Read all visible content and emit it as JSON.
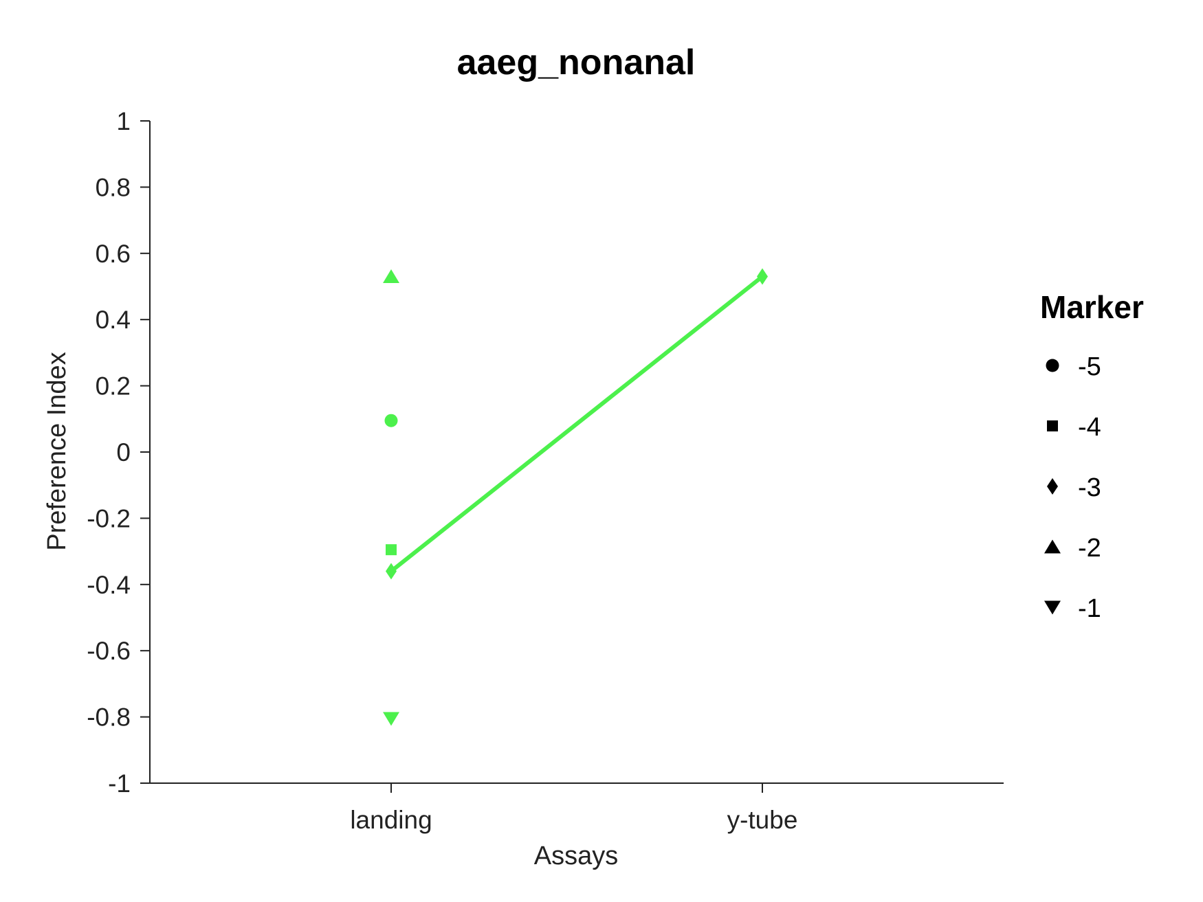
{
  "chart_data": {
    "type": "scatter",
    "title": "aaeg_nonanal",
    "xlabel": "Assays",
    "ylabel": "Preference Index",
    "categories": [
      "landing",
      "y-tube"
    ],
    "ylim": [
      -1,
      1
    ],
    "yticks": [
      "1",
      "0.8",
      "0.6",
      "0.4",
      "0.2",
      "0",
      "-0.2",
      "-0.4",
      "-0.6",
      "-0.8",
      "-1"
    ],
    "color": "#4cf04c",
    "points": [
      {
        "category": "landing",
        "y": 0.53,
        "marker": "triangle-up"
      },
      {
        "category": "landing",
        "y": 0.095,
        "marker": "circle"
      },
      {
        "category": "landing",
        "y": -0.295,
        "marker": "square"
      },
      {
        "category": "landing",
        "y": -0.36,
        "marker": "diamond"
      },
      {
        "category": "landing",
        "y": -0.805,
        "marker": "triangle-down"
      },
      {
        "category": "y-tube",
        "y": 0.53,
        "marker": "diamond"
      }
    ],
    "line": {
      "from": {
        "category": "landing",
        "y": -0.36
      },
      "to": {
        "category": "y-tube",
        "y": 0.53
      }
    },
    "legend": {
      "title": "Marker",
      "placement": "right",
      "entries": [
        {
          "label": "-5",
          "marker": "circle"
        },
        {
          "label": "-4",
          "marker": "square"
        },
        {
          "label": "-3",
          "marker": "diamond"
        },
        {
          "label": "-2",
          "marker": "triangle-up"
        },
        {
          "label": "-1",
          "marker": "triangle-down"
        }
      ]
    },
    "grid": false
  }
}
